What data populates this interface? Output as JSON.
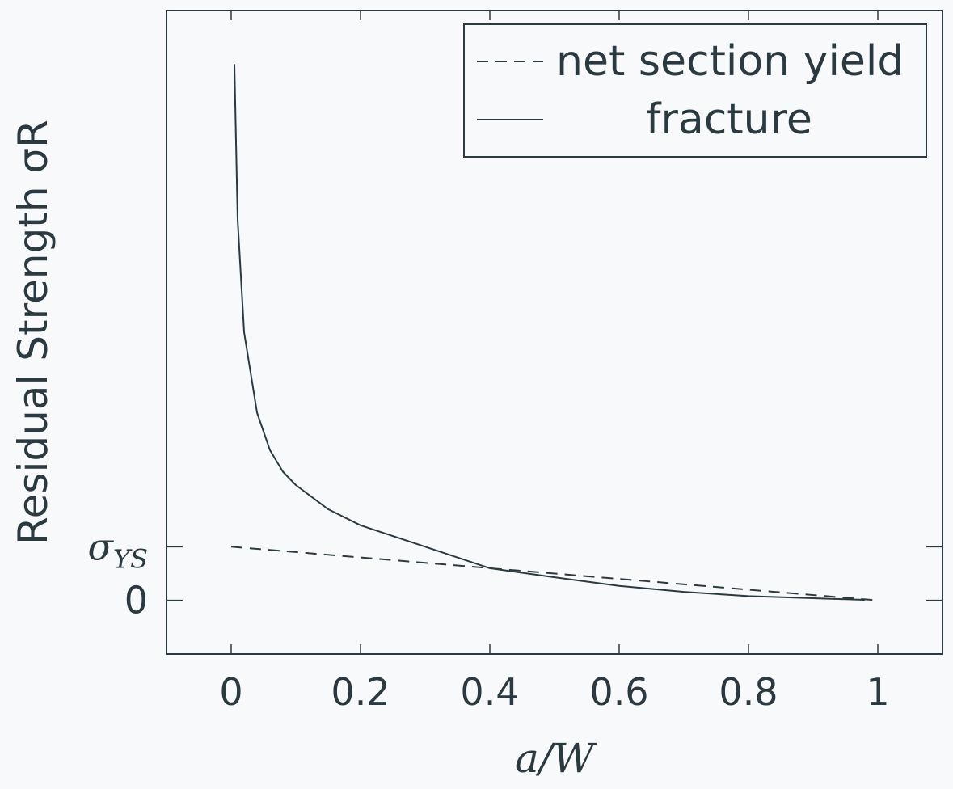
{
  "chart_data": {
    "type": "line",
    "title": "",
    "xlabel": "a/W",
    "ylabel": "Residual Strength σR",
    "xlim": [
      -0.1,
      1.1
    ],
    "ylim": [
      -1,
      11
    ],
    "x_ticks": [
      {
        "value": 0,
        "label": "0"
      },
      {
        "value": 0.2,
        "label": "0.2"
      },
      {
        "value": 0.4,
        "label": "0.4"
      },
      {
        "value": 0.6,
        "label": "0.6"
      },
      {
        "value": 0.8,
        "label": "0.8"
      },
      {
        "value": 1,
        "label": "1"
      }
    ],
    "y_ticks": [
      {
        "value": 1,
        "label": "σYS",
        "main": "σ",
        "sub": "YS"
      },
      {
        "value": 0,
        "label": "0"
      }
    ],
    "legend_position": "top-right",
    "grid": false,
    "colors": {
      "background": "#f8f9fa",
      "line": "#2b3a40"
    },
    "series": [
      {
        "name": "net section yield",
        "style": "dashed",
        "x": [
          0,
          1
        ],
        "y": [
          1,
          0
        ]
      },
      {
        "name": "fracture",
        "style": "solid",
        "x": [
          0.005,
          0.01,
          0.02,
          0.04,
          0.06,
          0.08,
          0.1,
          0.15,
          0.2,
          0.3,
          0.4,
          0.5,
          0.6,
          0.7,
          0.8,
          0.9,
          0.95,
          0.98
        ],
        "y": [
          10.0,
          7.1,
          5.0,
          3.5,
          2.8,
          2.4,
          2.15,
          1.7,
          1.4,
          1.0,
          0.6,
          0.43,
          0.27,
          0.16,
          0.08,
          0.04,
          0.02,
          0.01
        ]
      }
    ]
  }
}
